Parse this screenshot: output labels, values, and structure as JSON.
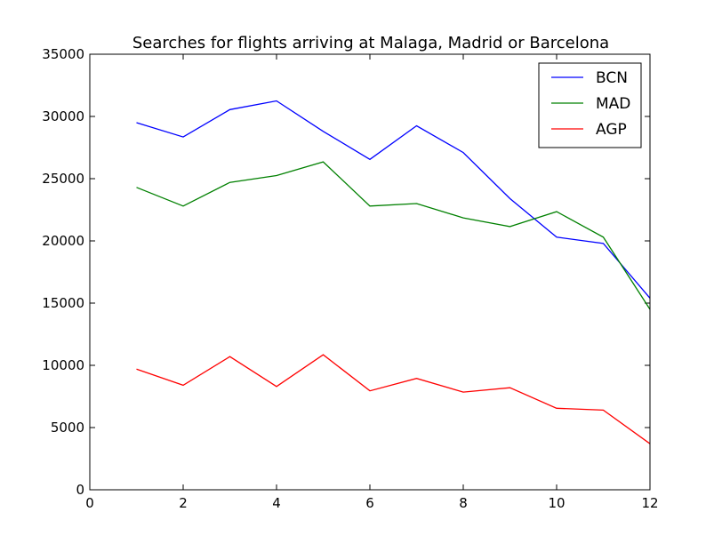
{
  "chart_data": {
    "type": "line",
    "title": "Searches for flights arriving at Malaga, Madrid or Barcelona",
    "xlabel": "",
    "ylabel": "",
    "xlim": [
      0,
      12
    ],
    "ylim": [
      0,
      35000
    ],
    "xticks": [
      0,
      2,
      4,
      6,
      8,
      10,
      12
    ],
    "yticks": [
      0,
      5000,
      10000,
      15000,
      20000,
      25000,
      30000,
      35000
    ],
    "grid": false,
    "legend_position": "top-right",
    "x": [
      1,
      2,
      3,
      4,
      5,
      6,
      7,
      8,
      9,
      10,
      11,
      12
    ],
    "series": [
      {
        "name": "BCN",
        "color": "#0000ff",
        "values": [
          29500,
          28350,
          30550,
          31250,
          28800,
          26550,
          29250,
          27100,
          23400,
          20300,
          19800,
          15400
        ]
      },
      {
        "name": "MAD",
        "color": "#008000",
        "values": [
          24300,
          22800,
          24700,
          25250,
          26350,
          22800,
          23000,
          21850,
          21150,
          22350,
          20300,
          14500
        ]
      },
      {
        "name": "AGP",
        "color": "#ff0000",
        "values": [
          9700,
          8400,
          10700,
          8300,
          10850,
          7950,
          8950,
          7850,
          8200,
          6550,
          6400,
          3700
        ]
      }
    ]
  }
}
